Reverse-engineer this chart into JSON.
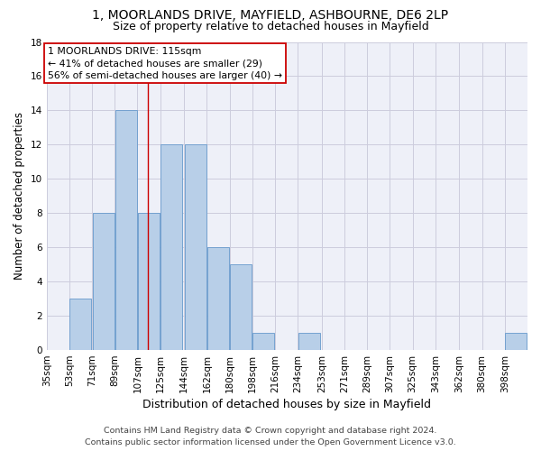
{
  "title1": "1, MOORLANDS DRIVE, MAYFIELD, ASHBOURNE, DE6 2LP",
  "title2": "Size of property relative to detached houses in Mayfield",
  "xlabel": "Distribution of detached houses by size in Mayfield",
  "ylabel": "Number of detached properties",
  "bin_labels": [
    "35sqm",
    "53sqm",
    "71sqm",
    "89sqm",
    "107sqm",
    "125sqm",
    "144sqm",
    "162sqm",
    "180sqm",
    "198sqm",
    "216sqm",
    "234sqm",
    "253sqm",
    "271sqm",
    "289sqm",
    "307sqm",
    "325sqm",
    "343sqm",
    "362sqm",
    "380sqm",
    "398sqm"
  ],
  "bin_edges": [
    35,
    53,
    71,
    89,
    107,
    125,
    144,
    162,
    180,
    198,
    216,
    234,
    253,
    271,
    289,
    307,
    325,
    343,
    362,
    380,
    398
  ],
  "bar_counts": [
    0,
    3,
    8,
    14,
    8,
    12,
    12,
    6,
    5,
    1,
    0,
    1,
    0,
    0,
    0,
    0,
    0,
    0,
    0,
    0,
    1
  ],
  "bar_color": "#b8cfe8",
  "bar_edge_color": "#6699cc",
  "vline_x": 115,
  "vline_color": "#cc0000",
  "annotation_line1": "1 MOORLANDS DRIVE: 115sqm",
  "annotation_line2": "← 41% of detached houses are smaller (29)",
  "annotation_line3": "56% of semi-detached houses are larger (40) →",
  "annotation_box_color": "#ffffff",
  "annotation_box_edge": "#cc0000",
  "ylim": [
    0,
    18
  ],
  "yticks": [
    0,
    2,
    4,
    6,
    8,
    10,
    12,
    14,
    16,
    18
  ],
  "grid_color": "#ccccdd",
  "background_color": "#eef0f8",
  "footer_line1": "Contains HM Land Registry data © Crown copyright and database right 2024.",
  "footer_line2": "Contains public sector information licensed under the Open Government Licence v3.0.",
  "title1_fontsize": 10,
  "title2_fontsize": 9,
  "xlabel_fontsize": 9,
  "ylabel_fontsize": 8.5,
  "tick_fontsize": 7.5,
  "footer_fontsize": 6.8,
  "annotation_fontsize": 7.8
}
